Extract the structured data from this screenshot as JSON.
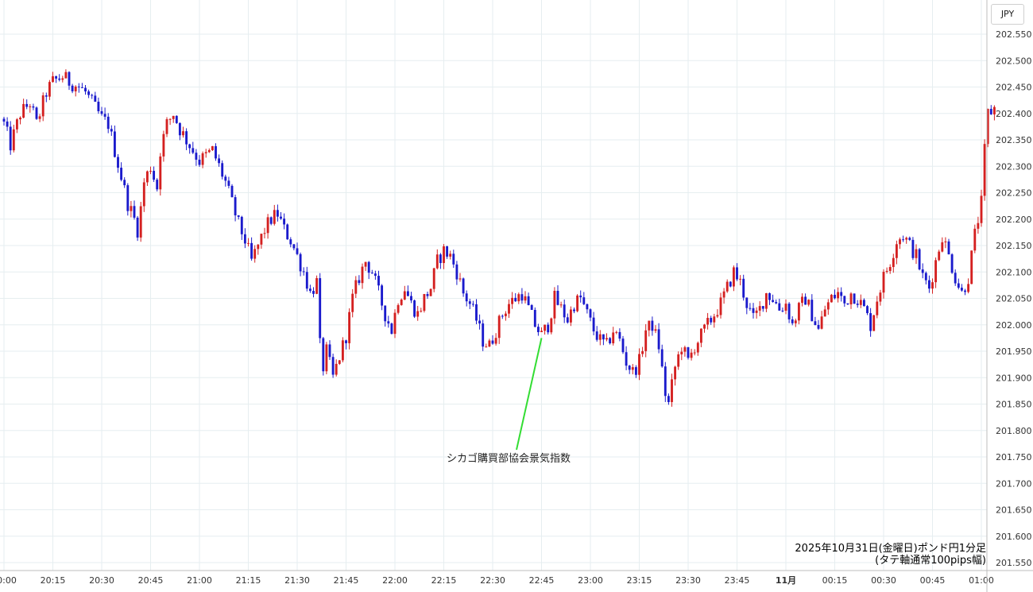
{
  "chart_data": {
    "type": "candlestick",
    "title": "2025年10月31日(金曜日)ポンド円1分足",
    "subtitle": "(タテ軸通常100pips幅)",
    "ylabel": "JPY",
    "ylim": [
      201.52,
      202.61
    ],
    "grid": true,
    "y_ticks": [
      "202.550",
      "202.500",
      "202.450",
      "202.400",
      "202.350",
      "202.300",
      "202.250",
      "202.200",
      "202.150",
      "202.100",
      "202.050",
      "202.000",
      "201.950",
      "201.900",
      "201.850",
      "201.800",
      "201.750",
      "201.700",
      "201.650",
      "201.600",
      "201.550"
    ],
    "x_ticks": [
      "20:00",
      "20:15",
      "20:30",
      "20:45",
      "21:00",
      "21:15",
      "21:30",
      "21:45",
      "22:00",
      "22:15",
      "22:30",
      "22:45",
      "23:00",
      "23:15",
      "23:30",
      "23:45",
      "11月",
      "00:15",
      "00:30",
      "00:45",
      "01:00"
    ],
    "annotation": {
      "label": "シカゴ購買部協会景気指数",
      "time": "22:45",
      "price": 201.975
    },
    "colors": {
      "up": "#d42020",
      "down": "#1a1acc",
      "annotation_line": "#33dd33"
    },
    "series": [
      {
        "close_path": [
          [
            "20:00",
            202.38
          ],
          [
            "20:02",
            202.34
          ],
          [
            "20:05",
            202.4
          ],
          [
            "20:08",
            202.42
          ],
          [
            "20:10",
            202.38
          ],
          [
            "20:13",
            202.44
          ],
          [
            "20:15",
            202.46
          ],
          [
            "20:18",
            202.47
          ],
          [
            "20:20",
            202.46
          ],
          [
            "20:23",
            202.45
          ],
          [
            "20:25",
            202.44
          ],
          [
            "20:27",
            202.42
          ],
          [
            "20:30",
            202.39
          ],
          [
            "20:32",
            202.38
          ],
          [
            "20:34",
            202.33
          ],
          [
            "20:36",
            202.28
          ],
          [
            "20:38",
            202.23
          ],
          [
            "20:40",
            202.2
          ],
          [
            "20:41",
            202.18
          ],
          [
            "20:42",
            202.22
          ],
          [
            "20:43",
            202.27
          ],
          [
            "20:45",
            202.3
          ],
          [
            "20:47",
            202.26
          ],
          [
            "20:48",
            202.33
          ],
          [
            "20:50",
            202.38
          ],
          [
            "20:52",
            202.4
          ],
          [
            "20:54",
            202.37
          ],
          [
            "20:56",
            202.35
          ],
          [
            "20:58",
            202.33
          ],
          [
            "21:00",
            202.31
          ],
          [
            "21:02",
            202.32
          ],
          [
            "21:04",
            202.33
          ],
          [
            "21:06",
            202.3
          ],
          [
            "21:08",
            202.27
          ],
          [
            "21:10",
            202.23
          ],
          [
            "21:12",
            202.19
          ],
          [
            "21:14",
            202.16
          ],
          [
            "21:16",
            202.12
          ],
          [
            "21:18",
            202.15
          ],
          [
            "21:20",
            202.18
          ],
          [
            "21:22",
            202.2
          ],
          [
            "21:24",
            202.21
          ],
          [
            "21:26",
            202.18
          ],
          [
            "21:28",
            202.16
          ],
          [
            "21:30",
            202.13
          ],
          [
            "21:32",
            202.1
          ],
          [
            "21:34",
            202.06
          ],
          [
            "21:36",
            202.08
          ],
          [
            "21:37",
            201.96
          ],
          [
            "21:38",
            201.92
          ],
          [
            "21:39",
            201.95
          ],
          [
            "21:41",
            201.9
          ],
          [
            "21:43",
            201.94
          ],
          [
            "21:45",
            201.98
          ],
          [
            "21:47",
            202.05
          ],
          [
            "21:49",
            202.09
          ],
          [
            "21:51",
            202.12
          ],
          [
            "21:53",
            202.1
          ],
          [
            "21:55",
            202.06
          ],
          [
            "21:57",
            202.02
          ],
          [
            "21:59",
            201.99
          ],
          [
            "22:01",
            202.05
          ],
          [
            "22:03",
            202.07
          ],
          [
            "22:05",
            202.04
          ],
          [
            "22:07",
            202.02
          ],
          [
            "22:09",
            202.05
          ],
          [
            "22:11",
            202.07
          ],
          [
            "22:13",
            202.12
          ],
          [
            "22:15",
            202.14
          ],
          [
            "22:17",
            202.13
          ],
          [
            "22:19",
            202.1
          ],
          [
            "22:21",
            202.06
          ],
          [
            "22:23",
            202.04
          ],
          [
            "22:25",
            202.01
          ],
          [
            "22:27",
            201.97
          ],
          [
            "22:29",
            201.96
          ],
          [
            "22:31",
            201.99
          ],
          [
            "22:33",
            202.02
          ],
          [
            "22:35",
            202.04
          ],
          [
            "22:37",
            202.05
          ],
          [
            "22:39",
            202.06
          ],
          [
            "22:41",
            202.03
          ],
          [
            "22:43",
            202.0
          ],
          [
            "22:45",
            201.98
          ],
          [
            "22:47",
            202.0
          ],
          [
            "22:49",
            202.05
          ],
          [
            "22:51",
            202.03
          ],
          [
            "22:53",
            202.01
          ],
          [
            "22:55",
            202.04
          ],
          [
            "22:57",
            202.05
          ],
          [
            "22:59",
            202.02
          ],
          [
            "23:01",
            201.99
          ],
          [
            "23:03",
            201.97
          ],
          [
            "23:05",
            201.96
          ],
          [
            "23:07",
            201.99
          ],
          [
            "23:09",
            201.97
          ],
          [
            "23:11",
            201.93
          ],
          [
            "23:13",
            201.91
          ],
          [
            "23:15",
            201.93
          ],
          [
            "23:17",
            201.99
          ],
          [
            "23:19",
            202.0
          ],
          [
            "23:21",
            201.96
          ],
          [
            "23:23",
            201.87
          ],
          [
            "23:24",
            201.85
          ],
          [
            "23:26",
            201.92
          ],
          [
            "23:28",
            201.96
          ],
          [
            "23:30",
            201.93
          ],
          [
            "23:32",
            201.96
          ],
          [
            "23:34",
            201.98
          ],
          [
            "23:36",
            202.0
          ],
          [
            "23:38",
            202.02
          ],
          [
            "23:40",
            202.04
          ],
          [
            "23:42",
            202.07
          ],
          [
            "23:44",
            202.1
          ],
          [
            "23:46",
            202.08
          ],
          [
            "23:48",
            202.04
          ],
          [
            "23:50",
            202.01
          ],
          [
            "23:52",
            202.03
          ],
          [
            "23:54",
            202.06
          ],
          [
            "23:56",
            202.05
          ],
          [
            "23:58",
            202.03
          ],
          [
            "00:00",
            202.04
          ],
          [
            "00:02",
            202.0
          ],
          [
            "00:04",
            202.03
          ],
          [
            "00:06",
            202.05
          ],
          [
            "00:08",
            202.02
          ],
          [
            "00:10",
            201.99
          ],
          [
            "00:12",
            202.03
          ],
          [
            "00:14",
            202.05
          ],
          [
            "00:16",
            202.06
          ],
          [
            "00:18",
            202.04
          ],
          [
            "00:20",
            202.06
          ],
          [
            "00:22",
            202.05
          ],
          [
            "00:24",
            202.03
          ],
          [
            "00:26",
            202.0
          ],
          [
            "00:28",
            202.05
          ],
          [
            "00:30",
            202.09
          ],
          [
            "00:32",
            202.12
          ],
          [
            "00:34",
            202.16
          ],
          [
            "00:36",
            202.17
          ],
          [
            "00:38",
            202.15
          ],
          [
            "00:40",
            202.13
          ],
          [
            "00:42",
            202.09
          ],
          [
            "00:44",
            202.07
          ],
          [
            "00:46",
            202.12
          ],
          [
            "00:48",
            202.17
          ],
          [
            "00:50",
            202.13
          ],
          [
            "00:52",
            202.09
          ],
          [
            "00:54",
            202.06
          ],
          [
            "00:56",
            202.09
          ],
          [
            "00:58",
            202.17
          ],
          [
            "01:00",
            202.23
          ],
          [
            "01:01",
            202.33
          ],
          [
            "01:02",
            202.4
          ],
          [
            "01:04",
            202.41
          ]
        ]
      }
    ]
  }
}
